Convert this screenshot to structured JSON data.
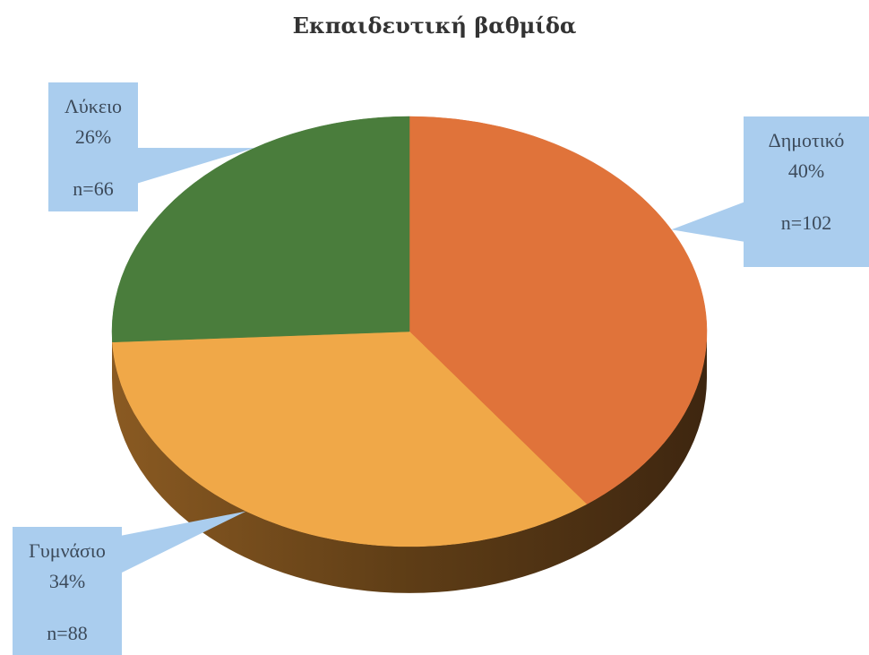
{
  "chart_data": {
    "type": "pie",
    "title": "Εκπαιδευτική βαθμίδα",
    "series": [
      {
        "name": "Δημοτικό",
        "percent_label": "40%",
        "count_label": "n=102",
        "value": 102,
        "color": "#e0733a"
      },
      {
        "name": "Γυμνάσιο",
        "percent_label": "34%",
        "count_label": "n=88",
        "value": 88,
        "color": "#f0a848"
      },
      {
        "name": "Λύκειο",
        "percent_label": "26%",
        "count_label": "n=66",
        "value": 66,
        "color": "#4a7d3c"
      }
    ],
    "callout_color": "#aacdee",
    "edge_color": "#6b4a1e"
  }
}
